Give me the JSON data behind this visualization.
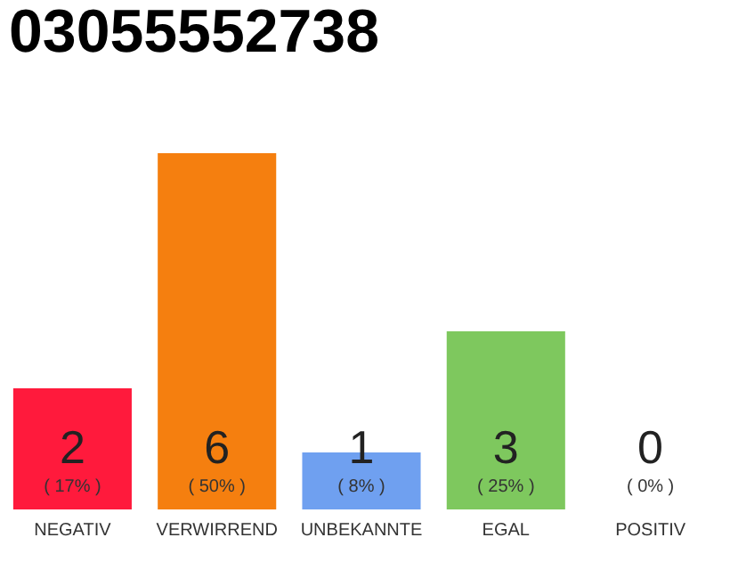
{
  "chart_data": {
    "type": "bar",
    "title": "03055552738",
    "categories": [
      "NEGATIV",
      "VERWIRREND",
      "UNBEKANNTE",
      "EGAL",
      "POSITIV"
    ],
    "values": [
      17,
      50,
      8,
      25,
      0
    ],
    "colors": [
      "#ff1a3c",
      "#f57f0f",
      "#6fa0f0",
      "#7ec85e",
      "#dddddd"
    ],
    "value_labels": [
      "( 17% )",
      "( 50% )",
      "( 8% )",
      "( 25% )",
      "( 0% )"
    ],
    "annotations": [
      "2",
      "6",
      "1",
      "3",
      "0"
    ],
    "grid": false,
    "tick_labels": "x"
  }
}
